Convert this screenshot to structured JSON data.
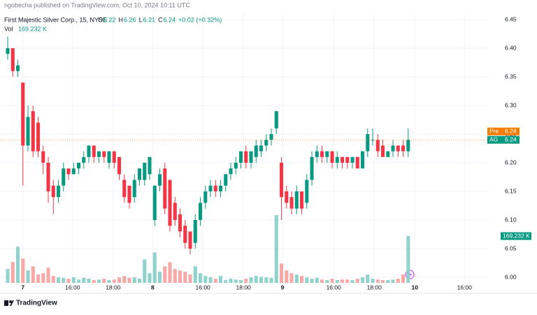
{
  "header": {
    "published": "ngobecha published on TradingView.com, Oct 10, 2024 10:11 UTC",
    "symbol": "First Majestic Silver Corp., 15, NYSE",
    "ohlc": [
      {
        "label": "O",
        "value": "6.22"
      },
      {
        "label": "H",
        "value": "6.26"
      },
      {
        "label": "L",
        "value": "6.21"
      },
      {
        "label": "C",
        "value": "6.24"
      }
    ],
    "change": "+0.02 (+0.32%)",
    "vol_label": "Vol",
    "vol_value": "169.232 K"
  },
  "footer": {
    "brand": "TradingView"
  },
  "chart_data": {
    "type": "candlestick",
    "up_color": "#089981",
    "down_color": "#f23645",
    "volume_up_color": "#8fd3cc",
    "volume_down_color": "#f7a9a7",
    "open": [
      6.39,
      6.4,
      6.36,
      6.34,
      6.23,
      6.29,
      6.27,
      6.22,
      6.2,
      6.16,
      6.14,
      6.16,
      6.19,
      6.18,
      6.19,
      6.2,
      6.21,
      6.23,
      6.21,
      6.22,
      6.2,
      6.22,
      6.21,
      6.17,
      6.16,
      6.14,
      6.17,
      6.17,
      6.18,
      6.1,
      6.16,
      6.19,
      6.17,
      6.13,
      6.11,
      6.09,
      6.08,
      6.06,
      6.1,
      6.13,
      6.15,
      6.16,
      6.15,
      6.16,
      6.18,
      6.19,
      6.2,
      6.22,
      6.2,
      6.21,
      6.22,
      6.23,
      6.24,
      6.26,
      6.2,
      6.15,
      6.14,
      6.12,
      6.15,
      6.13,
      6.17,
      6.21,
      6.22,
      6.21,
      6.22,
      6.2,
      6.21,
      6.21,
      6.2,
      6.21,
      6.19,
      6.22,
      6.24,
      6.24,
      6.23,
      6.21,
      6.22,
      6.23,
      6.23,
      6.22
    ],
    "high": [
      6.42,
      6.4,
      6.38,
      6.34,
      6.3,
      6.3,
      6.28,
      6.23,
      6.21,
      6.17,
      6.17,
      6.2,
      6.19,
      6.2,
      6.2,
      6.22,
      6.23,
      6.23,
      6.22,
      6.22,
      6.22,
      6.22,
      6.21,
      6.18,
      6.16,
      6.18,
      6.19,
      6.2,
      6.21,
      6.16,
      6.19,
      6.2,
      6.17,
      6.14,
      6.12,
      6.1,
      6.08,
      6.11,
      6.14,
      6.16,
      6.17,
      6.17,
      6.17,
      6.18,
      6.2,
      6.21,
      6.22,
      6.23,
      6.22,
      6.24,
      6.24,
      6.25,
      6.26,
      6.29,
      6.21,
      6.16,
      6.15,
      6.16,
      6.15,
      6.18,
      6.22,
      6.23,
      6.23,
      6.22,
      6.22,
      6.22,
      6.21,
      6.21,
      6.21,
      6.21,
      6.22,
      6.26,
      6.26,
      6.25,
      6.24,
      6.22,
      6.24,
      6.23,
      6.24,
      6.26
    ],
    "low": [
      6.38,
      6.35,
      6.35,
      6.16,
      6.22,
      6.21,
      6.21,
      6.18,
      6.13,
      6.11,
      6.13,
      6.15,
      6.17,
      6.18,
      6.18,
      6.19,
      6.2,
      6.2,
      6.2,
      6.2,
      6.19,
      6.19,
      6.17,
      6.13,
      6.12,
      6.13,
      6.16,
      6.16,
      6.17,
      6.09,
      6.15,
      6.11,
      6.08,
      6.09,
      6.07,
      6.05,
      6.04,
      6.05,
      6.09,
      6.12,
      6.14,
      6.14,
      6.14,
      6.15,
      6.17,
      6.18,
      6.19,
      6.19,
      6.19,
      6.2,
      6.21,
      6.22,
      6.23,
      6.25,
      6.1,
      6.12,
      6.11,
      6.11,
      6.11,
      6.12,
      6.16,
      6.2,
      6.2,
      6.2,
      6.19,
      6.19,
      6.19,
      6.19,
      6.19,
      6.19,
      6.19,
      6.21,
      6.23,
      6.21,
      6.21,
      6.21,
      6.21,
      6.21,
      6.21,
      6.21
    ],
    "close": [
      6.4,
      6.36,
      6.37,
      6.23,
      6.28,
      6.22,
      6.22,
      6.2,
      6.15,
      6.14,
      6.16,
      6.19,
      6.18,
      6.19,
      6.2,
      6.21,
      6.23,
      6.21,
      6.22,
      6.21,
      6.22,
      6.2,
      6.18,
      6.14,
      6.13,
      6.17,
      6.19,
      6.2,
      6.21,
      6.16,
      6.18,
      6.12,
      6.09,
      6.1,
      6.08,
      6.06,
      6.05,
      6.1,
      6.13,
      6.15,
      6.16,
      6.15,
      6.16,
      6.18,
      6.19,
      6.2,
      6.22,
      6.2,
      6.22,
      6.23,
      6.23,
      6.24,
      6.25,
      6.29,
      6.14,
      6.13,
      6.12,
      6.15,
      6.12,
      6.17,
      6.21,
      6.22,
      6.21,
      6.22,
      6.2,
      6.21,
      6.2,
      6.2,
      6.21,
      6.19,
      6.22,
      6.25,
      6.24,
      6.22,
      6.21,
      6.22,
      6.23,
      6.22,
      6.22,
      6.24
    ],
    "volume": [
      50000,
      76000,
      131000,
      88000,
      45000,
      60000,
      30000,
      35000,
      55000,
      25000,
      20000,
      18000,
      15000,
      20000,
      12000,
      18000,
      15000,
      10000,
      12000,
      15000,
      10000,
      12000,
      20000,
      25000,
      18000,
      20000,
      15000,
      85000,
      35000,
      110000,
      40000,
      60000,
      75000,
      50000,
      45000,
      40000,
      30000,
      60000,
      35000,
      25000,
      20000,
      15000,
      25000,
      10000,
      15000,
      12000,
      10000,
      15000,
      20000,
      25000,
      22000,
      20000,
      18000,
      245000,
      70000,
      45000,
      35000,
      30000,
      25000,
      20000,
      15000,
      18000,
      12000,
      10000,
      15000,
      10000,
      12000,
      12000,
      10000,
      15000,
      20000,
      30000,
      15000,
      12000,
      10000,
      10000,
      12000,
      15000,
      30000,
      169232
    ],
    "volume_last_label": "169.232 K",
    "xlim": [
      -1.52,
      95.03
    ],
    "xticks": [
      {
        "value": 3,
        "label": "7"
      },
      {
        "value": 12.8,
        "label": "16:00"
      },
      {
        "value": 20.8,
        "label": "18:00"
      },
      {
        "value": 28.6,
        "label": "8"
      },
      {
        "value": 38.5,
        "label": "16:00"
      },
      {
        "value": 46.5,
        "label": "18:00"
      },
      {
        "value": 54.2,
        "label": "9"
      },
      {
        "value": 64.3,
        "label": "16:00"
      },
      {
        "value": 72.3,
        "label": "18:00"
      },
      {
        "value": 80.3,
        "label": "10"
      },
      {
        "value": 90.1,
        "label": "16:00"
      }
    ],
    "ylim": [
      6.0,
      6.45
    ],
    "yticks": [
      {
        "value": 6.0,
        "label": "6.00"
      },
      {
        "value": 6.05,
        "label": "6.05"
      },
      {
        "value": 6.1,
        "label": "6.10"
      },
      {
        "value": 6.15,
        "label": "6.15"
      },
      {
        "value": 6.2,
        "label": "6.20"
      },
      {
        "value": 6.25,
        "label": "6.25"
      },
      {
        "value": 6.3,
        "label": "6.30"
      },
      {
        "value": 6.35,
        "label": "6.35"
      },
      {
        "value": 6.4,
        "label": "6.40"
      },
      {
        "value": 6.45,
        "label": "6.45"
      }
    ],
    "y2lim": [
      0,
      700000
    ],
    "price_labels": [
      {
        "name": "Pre",
        "value": 6.24,
        "color": "#f57c00"
      },
      {
        "name": "AG",
        "value": 6.24,
        "color": "#089981"
      }
    ],
    "grid": true
  }
}
